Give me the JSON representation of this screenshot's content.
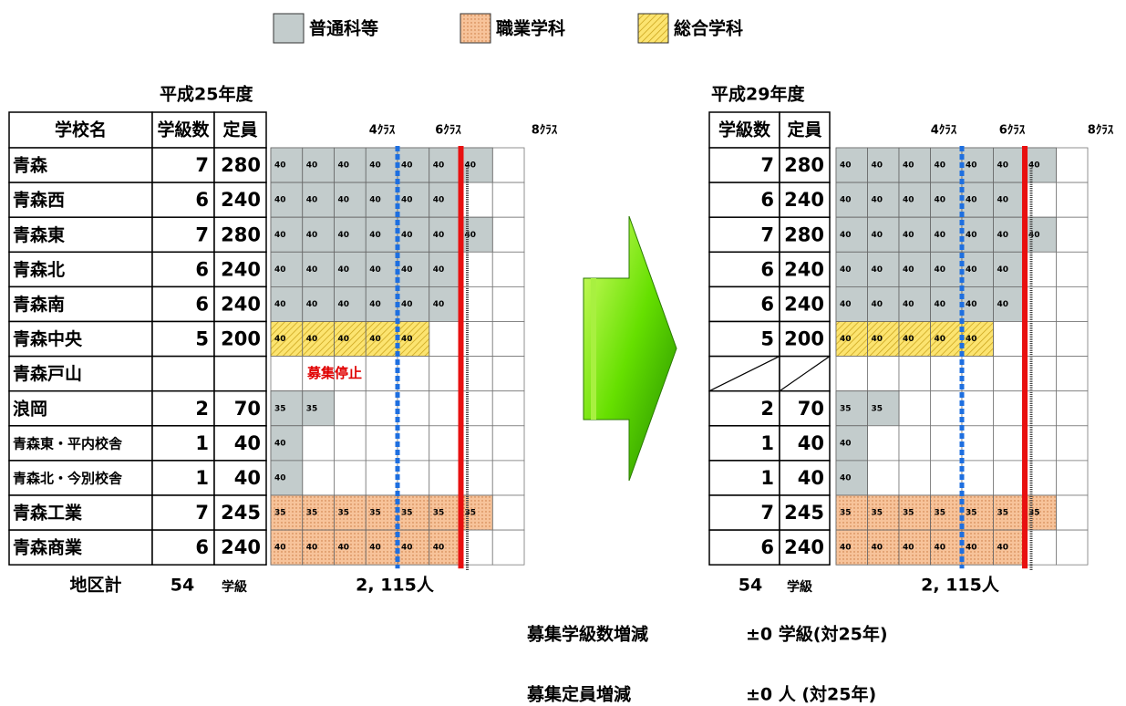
{
  "legend": [
    {
      "label": "普通科等",
      "color": "#c3cccc"
    },
    {
      "label": "職業学科",
      "color": "#f7c39a"
    },
    {
      "label": "総合学科",
      "color": "#fce470"
    }
  ],
  "left": {
    "title": "平成25年度",
    "headers": [
      "学校名",
      "学級数",
      "定員"
    ],
    "class_marks": [
      "4ｸﾗｽ",
      "6ｸﾗｽ",
      "8ｸﾗｽ"
    ],
    "rows": [
      {
        "school": "青森",
        "classes": 7,
        "capacity": 280,
        "color": "#c3cccc",
        "cells": [
          40,
          40,
          40,
          40,
          40,
          40,
          40
        ]
      },
      {
        "school": "青森西",
        "classes": 6,
        "capacity": 240,
        "color": "#c3cccc",
        "cells": [
          40,
          40,
          40,
          40,
          40,
          40
        ]
      },
      {
        "school": "青森東",
        "classes": 7,
        "capacity": 280,
        "color": "#c3cccc",
        "cells": [
          40,
          40,
          40,
          40,
          40,
          40,
          40
        ]
      },
      {
        "school": "青森北",
        "classes": 6,
        "capacity": 240,
        "color": "#c3cccc",
        "cells": [
          40,
          40,
          40,
          40,
          40,
          40
        ]
      },
      {
        "school": "青森南",
        "classes": 6,
        "capacity": 240,
        "color": "#c3cccc",
        "cells": [
          40,
          40,
          40,
          40,
          40,
          40
        ]
      },
      {
        "school": "青森中央",
        "classes": 5,
        "capacity": 200,
        "color": "#fce470",
        "cells": [
          40,
          40,
          40,
          40,
          40
        ]
      },
      {
        "school": "青森戸山",
        "classes": null,
        "capacity": null,
        "note": "募集停止",
        "cells": []
      },
      {
        "school": "浪岡",
        "classes": 2,
        "capacity": 70,
        "color": "#c3cccc",
        "cells": [
          35,
          35
        ]
      },
      {
        "school": "青森東・平内校舎",
        "classes": 1,
        "capacity": 40,
        "color": "#c3cccc",
        "cells": [
          40
        ]
      },
      {
        "school": "青森北・今別校舎",
        "classes": 1,
        "capacity": 40,
        "color": "#c3cccc",
        "cells": [
          40
        ]
      },
      {
        "school": "青森工業",
        "classes": 7,
        "capacity": 245,
        "color": "#f7c39a",
        "cells": [
          35,
          35,
          35,
          35,
          35,
          35,
          35
        ]
      },
      {
        "school": "青森商業",
        "classes": 6,
        "capacity": 240,
        "color": "#f7c39a",
        "cells": [
          40,
          40,
          40,
          40,
          40,
          40
        ]
      }
    ],
    "total": {
      "label": "地区計",
      "classes": 54,
      "unit": "学級",
      "capacity": "2, 115人"
    }
  },
  "right": {
    "title": "平成29年度",
    "headers": [
      "学級数",
      "定員"
    ],
    "class_marks": [
      "4ｸﾗｽ",
      "6ｸﾗｽ",
      "8ｸﾗｽ"
    ],
    "rows": [
      {
        "classes": 7,
        "capacity": 280,
        "color": "#c3cccc",
        "cells": [
          40,
          40,
          40,
          40,
          40,
          40,
          40
        ]
      },
      {
        "classes": 6,
        "capacity": 240,
        "color": "#c3cccc",
        "cells": [
          40,
          40,
          40,
          40,
          40,
          40
        ]
      },
      {
        "classes": 7,
        "capacity": 280,
        "color": "#c3cccc",
        "cells": [
          40,
          40,
          40,
          40,
          40,
          40,
          40
        ]
      },
      {
        "classes": 6,
        "capacity": 240,
        "color": "#c3cccc",
        "cells": [
          40,
          40,
          40,
          40,
          40,
          40
        ]
      },
      {
        "classes": 6,
        "capacity": 240,
        "color": "#c3cccc",
        "cells": [
          40,
          40,
          40,
          40,
          40,
          40
        ]
      },
      {
        "classes": 5,
        "capacity": 200,
        "color": "#fce470",
        "cells": [
          40,
          40,
          40,
          40,
          40
        ]
      },
      {
        "classes": null,
        "capacity": null,
        "cells": []
      },
      {
        "classes": 2,
        "capacity": 70,
        "color": "#c3cccc",
        "cells": [
          35,
          35
        ]
      },
      {
        "classes": 1,
        "capacity": 40,
        "color": "#c3cccc",
        "cells": [
          40
        ]
      },
      {
        "classes": 1,
        "capacity": 40,
        "color": "#c3cccc",
        "cells": [
          40
        ]
      },
      {
        "classes": 7,
        "capacity": 245,
        "color": "#f7c39a",
        "cells": [
          35,
          35,
          35,
          35,
          35,
          35,
          35
        ]
      },
      {
        "classes": 6,
        "capacity": 240,
        "color": "#f7c39a",
        "cells": [
          40,
          40,
          40,
          40,
          40,
          40
        ]
      }
    ],
    "total": {
      "classes": 54,
      "unit": "学級",
      "capacity": "2, 115人"
    }
  },
  "summary": [
    {
      "label": "募集学級数増減",
      "value": "±0 学級(対25年)"
    },
    {
      "label": "募集定員増減",
      "value": "±0 人 (対25年)"
    }
  ]
}
